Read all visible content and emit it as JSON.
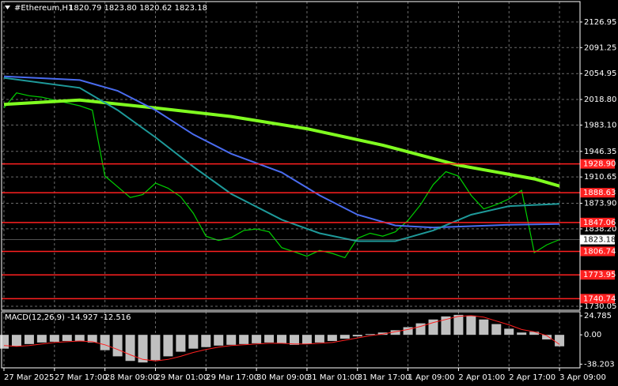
{
  "chart_data": [
    {
      "type": "line",
      "title": "#Ethereum,H1",
      "subtitle": "1820.79 1823.80 1820.62 1823.18",
      "xlim": [
        -0.75,
        182.5
      ],
      "xticks": [
        {
          "value": 0,
          "label": "27 Mar 2025"
        },
        {
          "value": 16,
          "label": "27 Mar 17:00"
        },
        {
          "value": 32,
          "label": "28 Mar 09:00"
        },
        {
          "value": 48,
          "label": "29 Mar 01:00"
        },
        {
          "value": 64,
          "label": "29 Mar 17:00"
        },
        {
          "value": 80,
          "label": "30 Mar 09:00"
        },
        {
          "value": 96,
          "label": "31 Mar 01:00"
        },
        {
          "value": 112,
          "label": "31 Mar 17:00"
        },
        {
          "value": 128,
          "label": "1 Apr 09:00"
        },
        {
          "value": 144,
          "label": "2 Apr 01:00"
        },
        {
          "value": 160,
          "label": "2 Apr 17:00"
        },
        {
          "value": 176,
          "label": "3 Apr 09:00"
        }
      ],
      "ylim": [
        1724.6,
        2155.5
      ],
      "yticks": [
        2126.95,
        2091.25,
        2054.95,
        {
          "value": 2018.8,
          "label": "2018.80"
        },
        {
          "value": 1983.1,
          "label": "1983.10"
        },
        1946.35,
        1910.65,
        {
          "value": 1873.9,
          "label": "1873.90"
        },
        {
          "value": 1838.2,
          "label": "1838.20"
        },
        1730.05
      ],
      "grid": true,
      "levels": [
        {
          "value": 1928.9,
          "label": "1928.90"
        },
        1888.63,
        1847.06,
        1806.74,
        1773.95,
        1740.74
      ],
      "level_color": "#ff2020",
      "last_price": 1823.18,
      "series": [
        {
          "color": "#00d000",
          "x": [
            0,
            4,
            8,
            12,
            16,
            20,
            24,
            28,
            32,
            36,
            40,
            44,
            48,
            52,
            56,
            60,
            64,
            68,
            72,
            76,
            80,
            84,
            88,
            92,
            96,
            100,
            104,
            108,
            112,
            116,
            120,
            124,
            128,
            132,
            136,
            140,
            144,
            148,
            152,
            156,
            160,
            164,
            168,
            172,
            176
          ],
          "values": [
            2007,
            2028,
            2024,
            2022,
            2018,
            2014,
            2010,
            2004,
            1912,
            1897,
            1882,
            1886,
            1902,
            1895,
            1883,
            1860,
            1828,
            1822,
            1826,
            1836,
            1838,
            1834,
            1812,
            1806,
            1800,
            1808,
            1804,
            1798,
            1825,
            1832,
            1828,
            1834,
            1850,
            1872,
            1900,
            1918,
            1912,
            1885,
            1866,
            1872,
            1880,
            1892,
            1805,
            1816,
            1823.18
          ]
        },
        {
          "color": "#80ff20",
          "x": [
            0,
            24,
            48,
            72,
            96,
            120,
            144,
            168,
            176
          ],
          "values": [
            2012,
            2018,
            2007,
            1995,
            1978,
            1955,
            1927,
            1908,
            1898
          ]
        },
        {
          "color": "#4a6cf0",
          "x": [
            0,
            24,
            36,
            48,
            60,
            72,
            88,
            100,
            112,
            124,
            136,
            148,
            160,
            176
          ],
          "values": [
            2051,
            2046,
            2031,
            2004,
            1970,
            1943,
            1917,
            1885,
            1858,
            1843,
            1840,
            1842,
            1844,
            1845
          ]
        },
        {
          "color": "#1e9a9a",
          "x": [
            0,
            24,
            36,
            48,
            60,
            72,
            88,
            100,
            112,
            124,
            136,
            148,
            160,
            176
          ],
          "values": [
            2049,
            2035,
            2004,
            1966,
            1925,
            1887,
            1851,
            1832,
            1821,
            1821,
            1836,
            1858,
            1870,
            1873
          ]
        }
      ]
    },
    {
      "type": "macd",
      "title": "MACD(12,26,9) -14.927 -12.516",
      "ylim": [
        -43,
        30
      ],
      "yticks": [
        24.785,
        {
          "value": 0,
          "label": "0.00"
        },
        -38.203
      ],
      "series": [
        {
          "kind": "bar",
          "color": "#c0c0c0",
          "values": [
            -18,
            -15,
            -12,
            -10,
            -9,
            -8,
            -8,
            -10,
            -20,
            -28,
            -34,
            -36,
            -33,
            -28,
            -22,
            -18,
            -16,
            -14,
            -13,
            -12,
            -11,
            -10,
            -11,
            -13,
            -12,
            -10,
            -8,
            -5,
            -2,
            1,
            3,
            6,
            10,
            15,
            20,
            24,
            26,
            25,
            20,
            14,
            8,
            3,
            4,
            -6,
            -14.927
          ]
        },
        {
          "kind": "line",
          "color": "#ff2020",
          "values": [
            -14,
            -15,
            -14,
            -12,
            -10,
            -9,
            -8,
            -9,
            -13,
            -19,
            -26,
            -32,
            -34,
            -32,
            -28,
            -23,
            -19,
            -16,
            -14,
            -13,
            -12,
            -11,
            -11,
            -12,
            -12,
            -11,
            -10,
            -7,
            -4,
            -1,
            1,
            4,
            7,
            11,
            16,
            20,
            24,
            25,
            23,
            18,
            13,
            7,
            4,
            -1,
            -12.516
          ]
        }
      ]
    }
  ]
}
